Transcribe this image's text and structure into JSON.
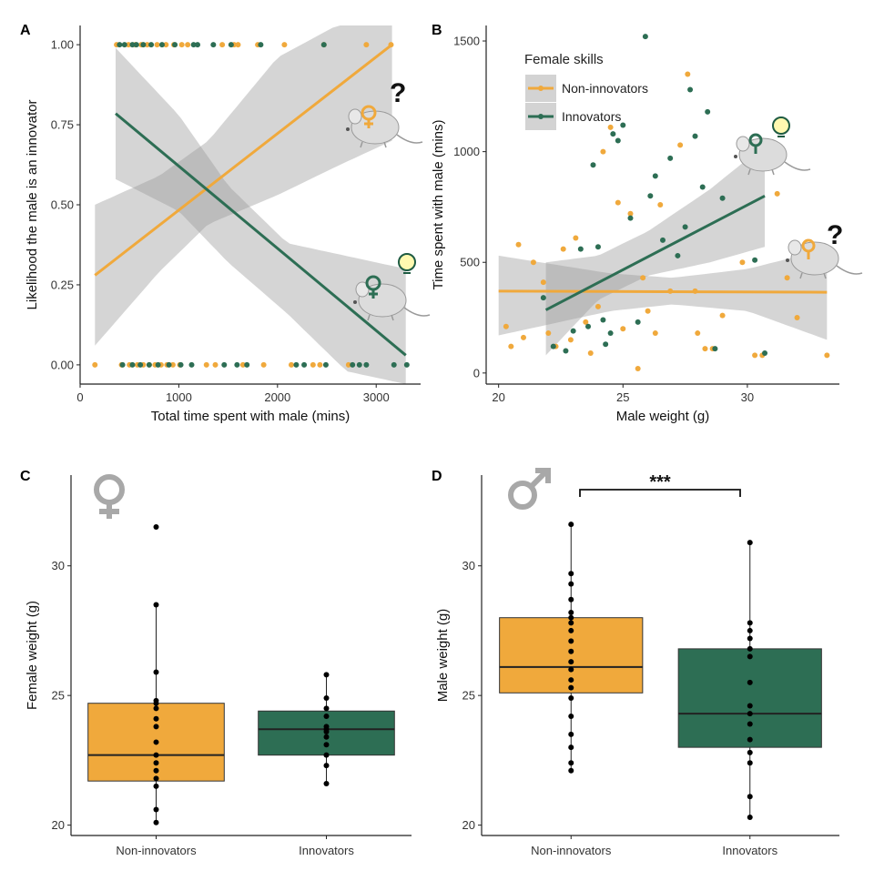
{
  "colors": {
    "non": "#f0a93c",
    "inn": "#2d6e54",
    "ci": "#c8c8c8",
    "sex": "#a8a8a8"
  },
  "chart_data": [
    {
      "id": "A",
      "type": "scatter",
      "panel_label": "A",
      "xlabel": "Total time spent with male (mins)",
      "ylabel": "Likelihood the male is an innovator",
      "xlim": [
        0,
        3450
      ],
      "ylim": [
        -0.06,
        1.06
      ],
      "xticks": [
        0,
        1000,
        2000,
        3000
      ],
      "xtick_labels": [
        "0",
        "1000",
        "2000",
        "3000"
      ],
      "yticks": [
        0,
        0.25,
        0.5,
        0.75,
        1
      ],
      "ytick_labels": [
        "0.00",
        "0.25",
        "0.50",
        "0.75",
        "1.00"
      ],
      "series": [
        {
          "name": "Non-innovators",
          "color_key": "non",
          "points_y1": [
            370,
            490,
            560,
            620,
            680,
            780,
            870,
            950,
            1030,
            1090,
            1440,
            1560,
            1600,
            1800,
            2070,
            2470,
            2900,
            3150
          ],
          "points_y0": [
            150,
            420,
            500,
            580,
            640,
            700,
            760,
            820,
            880,
            940,
            1010,
            1280,
            1370,
            1650,
            1860,
            2140,
            2360,
            2430,
            2720
          ],
          "fit": [
            [
              150,
              0.28
            ],
            [
              3160,
              1.0
            ]
          ],
          "ci_lower": [
            [
              150,
              0.06
            ],
            [
              800,
              0.29
            ],
            [
              1300,
              0.44
            ],
            [
              2000,
              0.53
            ],
            [
              2600,
              0.62
            ],
            [
              3160,
              0.7
            ]
          ],
          "ci_upper": [
            [
              150,
              0.5
            ],
            [
              800,
              0.59
            ],
            [
              1300,
              0.7
            ],
            [
              2000,
              0.96
            ],
            [
              2600,
              1.06
            ],
            [
              3160,
              1.06
            ]
          ]
        },
        {
          "name": "Innovators",
          "color_key": "inn",
          "points_y1": [
            400,
            450,
            530,
            570,
            640,
            720,
            830,
            960,
            1150,
            1190,
            1350,
            1530,
            1830,
            2470
          ],
          "points_y0": [
            430,
            530,
            610,
            700,
            790,
            900,
            1020,
            1130,
            1460,
            1590,
            1690,
            2190,
            2270,
            2490,
            2760,
            2830,
            2900,
            3180,
            3310
          ],
          "fit": [
            [
              360,
              0.785
            ],
            [
              3300,
              0.03
            ]
          ],
          "ci_lower": [
            [
              360,
              0.58
            ],
            [
              1000,
              0.48
            ],
            [
              1500,
              0.32
            ],
            [
              2100,
              0.16
            ],
            [
              2700,
              -0.02
            ],
            [
              3300,
              -0.06
            ]
          ],
          "ci_upper": [
            [
              360,
              0.99
            ],
            [
              1000,
              0.78
            ],
            [
              1500,
              0.56
            ],
            [
              2100,
              0.38
            ],
            [
              2700,
              0.34
            ],
            [
              3300,
              0.3
            ]
          ]
        }
      ]
    },
    {
      "id": "B",
      "type": "scatter",
      "panel_label": "B",
      "xlabel": "Male weight (g)",
      "ylabel": "Time spent with male (mins)",
      "xlim": [
        19.5,
        33.7
      ],
      "ylim": [
        -50,
        1570
      ],
      "xticks": [
        20,
        25,
        30
      ],
      "xtick_labels": [
        "20",
        "25",
        "30"
      ],
      "yticks": [
        0,
        500,
        1000,
        1500
      ],
      "ytick_labels": [
        "0",
        "500",
        "1000",
        "1500"
      ],
      "legend": {
        "title": "Female skills",
        "position": "top-left"
      },
      "series": [
        {
          "name": "Non-innovators",
          "color_key": "non",
          "points": [
            [
              20.3,
              210
            ],
            [
              20.5,
              120
            ],
            [
              20.8,
              580
            ],
            [
              21.0,
              160
            ],
            [
              21.4,
              500
            ],
            [
              21.8,
              410
            ],
            [
              22.0,
              180
            ],
            [
              22.3,
              120
            ],
            [
              22.6,
              560
            ],
            [
              22.9,
              150
            ],
            [
              23.1,
              610
            ],
            [
              23.5,
              230
            ],
            [
              23.7,
              90
            ],
            [
              24.0,
              300
            ],
            [
              24.2,
              1000
            ],
            [
              24.5,
              1110
            ],
            [
              24.8,
              770
            ],
            [
              25.0,
              200
            ],
            [
              25.3,
              720
            ],
            [
              25.6,
              20
            ],
            [
              25.8,
              430
            ],
            [
              26.0,
              280
            ],
            [
              26.3,
              180
            ],
            [
              26.5,
              760
            ],
            [
              26.9,
              370
            ],
            [
              27.3,
              1030
            ],
            [
              27.6,
              1350
            ],
            [
              27.9,
              370
            ],
            [
              28.0,
              180
            ],
            [
              28.3,
              110
            ],
            [
              28.6,
              110
            ],
            [
              29.0,
              260
            ],
            [
              29.8,
              500
            ],
            [
              30.3,
              80
            ],
            [
              30.6,
              80
            ],
            [
              31.2,
              810
            ],
            [
              31.6,
              430
            ],
            [
              32.0,
              250
            ],
            [
              33.2,
              80
            ]
          ],
          "fit": [
            [
              20.0,
              370
            ],
            [
              33.2,
              365
            ]
          ],
          "ci_lower": [
            [
              20.0,
              170
            ],
            [
              24.5,
              280
            ],
            [
              27.0,
              310
            ],
            [
              30.0,
              280
            ],
            [
              33.2,
              150
            ]
          ],
          "ci_upper": [
            [
              20.0,
              530
            ],
            [
              24.5,
              450
            ],
            [
              27.0,
              430
            ],
            [
              30.0,
              470
            ],
            [
              33.2,
              560
            ]
          ]
        },
        {
          "name": "Innovators",
          "color_key": "inn",
          "points": [
            [
              21.8,
              340
            ],
            [
              22.2,
              120
            ],
            [
              22.7,
              100
            ],
            [
              23.0,
              190
            ],
            [
              23.3,
              560
            ],
            [
              23.6,
              210
            ],
            [
              23.8,
              940
            ],
            [
              24.0,
              570
            ],
            [
              24.2,
              240
            ],
            [
              24.3,
              130
            ],
            [
              24.5,
              180
            ],
            [
              24.6,
              1080
            ],
            [
              24.8,
              1050
            ],
            [
              25.0,
              1120
            ],
            [
              25.3,
              700
            ],
            [
              25.6,
              230
            ],
            [
              25.9,
              1520
            ],
            [
              26.1,
              800
            ],
            [
              26.3,
              890
            ],
            [
              26.6,
              600
            ],
            [
              26.9,
              970
            ],
            [
              27.2,
              530
            ],
            [
              27.5,
              660
            ],
            [
              27.7,
              1280
            ],
            [
              27.9,
              1070
            ],
            [
              28.2,
              840
            ],
            [
              28.4,
              1180
            ],
            [
              28.7,
              110
            ],
            [
              29.0,
              790
            ],
            [
              30.3,
              510
            ],
            [
              30.7,
              90
            ]
          ],
          "fit": [
            [
              21.9,
              285
            ],
            [
              30.7,
              800
            ]
          ],
          "ci_lower": [
            [
              21.9,
              80
            ],
            [
              24.0,
              330
            ],
            [
              26.0,
              440
            ],
            [
              28.5,
              500
            ],
            [
              30.7,
              570
            ]
          ],
          "ci_upper": [
            [
              21.9,
              500
            ],
            [
              24.0,
              530
            ],
            [
              26.0,
              640
            ],
            [
              28.5,
              830
            ],
            [
              30.7,
              1030
            ]
          ]
        }
      ]
    },
    {
      "id": "C",
      "type": "box",
      "panel_label": "C",
      "xlabel": "",
      "ylabel": "Female weight (g)",
      "ylim": [
        19.6,
        33.5
      ],
      "yticks": [
        20,
        25,
        30
      ],
      "ytick_labels": [
        "20",
        "25",
        "30"
      ],
      "categories": [
        "Non-innovators",
        "Innovators"
      ],
      "boxes": [
        {
          "name": "Non-innovators",
          "color_key": "non",
          "min": 20.1,
          "q1": 21.7,
          "median": 22.7,
          "q3": 24.7,
          "max": 28.5,
          "outlier_max": 31.5,
          "points": [
            20.1,
            20.6,
            21.5,
            21.8,
            22.1,
            22.4,
            22.7,
            23.2,
            23.8,
            24.1,
            24.5,
            24.7,
            24.8,
            25.9,
            28.5,
            31.5
          ]
        },
        {
          "name": "Innovators",
          "color_key": "inn",
          "min": 21.6,
          "q1": 22.7,
          "median": 23.7,
          "q3": 24.4,
          "max": 25.8,
          "points": [
            21.6,
            22.3,
            22.7,
            23.1,
            23.4,
            23.6,
            23.7,
            23.8,
            24.2,
            24.5,
            24.9,
            25.8
          ]
        }
      ]
    },
    {
      "id": "D",
      "type": "box",
      "panel_label": "D",
      "xlabel": "",
      "ylabel": "Male weight (g)",
      "ylim": [
        19.6,
        33.5
      ],
      "yticks": [
        20,
        25,
        30
      ],
      "ytick_labels": [
        "20",
        "25",
        "30"
      ],
      "categories": [
        "Non-innovators",
        "Innovators"
      ],
      "significance": "***",
      "boxes": [
        {
          "name": "Non-innovators",
          "color_key": "non",
          "min": 22.1,
          "q1": 25.1,
          "median": 26.1,
          "q3": 28.0,
          "max": 31.6,
          "points": [
            22.1,
            22.4,
            23.0,
            23.5,
            24.2,
            24.9,
            25.3,
            25.6,
            26.0,
            26.3,
            26.7,
            27.1,
            27.5,
            27.8,
            28.0,
            28.2,
            28.7,
            29.3,
            29.7,
            31.6
          ]
        },
        {
          "name": "Innovators",
          "color_key": "inn",
          "min": 20.3,
          "q1": 23.0,
          "median": 24.3,
          "q3": 26.8,
          "max": 30.9,
          "points": [
            20.3,
            21.1,
            22.4,
            22.8,
            23.3,
            23.9,
            24.3,
            24.6,
            25.5,
            26.5,
            26.8,
            27.2,
            27.5,
            27.8,
            30.9
          ]
        }
      ]
    }
  ]
}
